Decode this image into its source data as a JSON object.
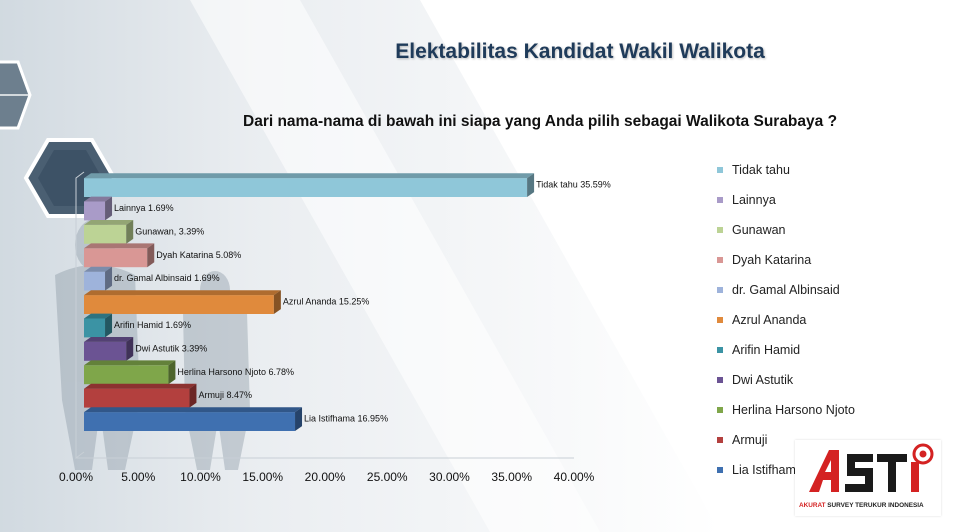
{
  "title": "Elektabilitas Kandidat Wakil Walikota",
  "question": "Dari nama-nama di bawah ini siapa yang Anda pilih sebagai Walikota Surabaya ?",
  "logo": {
    "mark": "ASTI",
    "tagline_red": "AKURAT",
    "tagline_dark": "SURVEY TERUKUR INDONESIA"
  },
  "chart_data": {
    "type": "bar",
    "orientation": "horizontal",
    "three_d": true,
    "categories": [
      "Tidak tahu",
      "Lainnya",
      "Gunawan",
      "Dyah Katarina",
      "dr. Gamal Albinsaid",
      "Azrul Ananda",
      "Arifin Hamid",
      "Dwi Astutik",
      "Herlina Harsono Njoto",
      "Armuji",
      "Lia Istifhama"
    ],
    "values": [
      35.59,
      1.69,
      3.39,
      5.08,
      1.69,
      15.25,
      1.69,
      3.39,
      6.78,
      8.47,
      16.95
    ],
    "data_labels": [
      "Tidak tahu 35.59%",
      "Lainnya 1.69%",
      "Gunawan, 3.39%",
      "Dyah Katarina 5.08%",
      "dr. Gamal Albinsaid 1.69%",
      "Azrul Ananda 15.25%",
      "Arifin Hamid 1.69%",
      "Dwi Astutik 3.39%",
      "Herlina Harsono Njoto 6.78%",
      "Armuji 8.47%",
      "Lia Istifhama 16.95%"
    ],
    "colors": [
      "#8fc7d9",
      "#a99bc8",
      "#bcd395",
      "#d99795",
      "#9eb3db",
      "#e08a3c",
      "#3b93a4",
      "#6b5393",
      "#7fa64a",
      "#b3403e",
      "#3f70b0"
    ],
    "legend": [
      "Tidak tahu",
      "Lainnya",
      "Gunawan",
      "Dyah Katarina",
      "dr. Gamal Albinsaid",
      "Azrul Ananda",
      "Arifin Hamid",
      "Dwi Astutik",
      "Herlina Harsono Njoto",
      "Armuji",
      "Lia Istifhama"
    ],
    "legend_position": "right",
    "xlim": [
      0,
      40
    ],
    "xticks": [
      "0.00%",
      "5.00%",
      "10.00%",
      "15.00%",
      "20.00%",
      "25.00%",
      "30.00%",
      "35.00%",
      "40.00%"
    ],
    "grid": false
  }
}
